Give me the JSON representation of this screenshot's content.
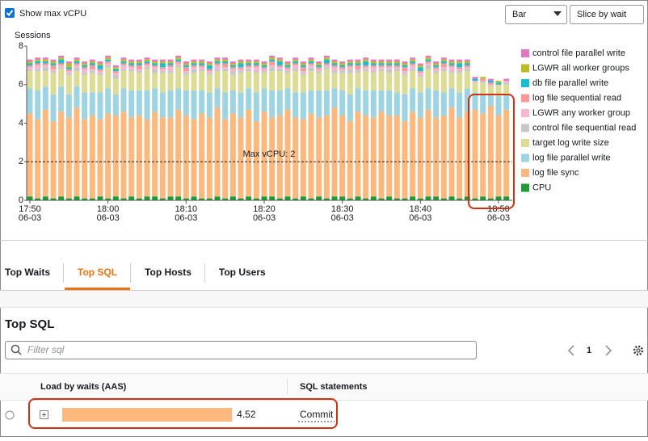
{
  "controls": {
    "show_max_vcpu": "Show max vCPU",
    "chart_type": "Bar",
    "slice": "Slice by wait"
  },
  "chart_data": {
    "type": "bar",
    "stacked": true,
    "ylabel": "Sessions",
    "ylim": [
      0,
      8
    ],
    "yticks": [
      0,
      2,
      4,
      6,
      8
    ],
    "categories": [
      "17:50",
      null,
      null,
      null,
      null,
      null,
      null,
      null,
      null,
      null,
      "18:00",
      null,
      null,
      null,
      null,
      null,
      null,
      null,
      null,
      null,
      "18:10",
      null,
      null,
      null,
      null,
      null,
      null,
      null,
      null,
      null,
      "18:20",
      null,
      null,
      null,
      null,
      null,
      null,
      null,
      null,
      null,
      "18:30",
      null,
      null,
      null,
      null,
      null,
      null,
      null,
      null,
      null,
      "18:40",
      null,
      null,
      null,
      null,
      null,
      null,
      null,
      null,
      null,
      "18:50",
      null
    ],
    "x_sublabels": [
      "06-03",
      null,
      null,
      null,
      null,
      null,
      null,
      null,
      null,
      null,
      "06-03",
      null,
      null,
      null,
      null,
      null,
      null,
      null,
      null,
      null,
      "06-03",
      null,
      null,
      null,
      null,
      null,
      null,
      null,
      null,
      null,
      "06-03",
      null,
      null,
      null,
      null,
      null,
      null,
      null,
      null,
      null,
      "06-03",
      null,
      null,
      null,
      null,
      null,
      null,
      null,
      null,
      null,
      "06-03",
      null,
      null,
      null,
      null,
      null,
      null,
      null,
      null,
      null,
      "06-03",
      null
    ],
    "reference_line": {
      "value": 2,
      "label": "Max vCPU: 2"
    },
    "series": [
      {
        "name": "CPU",
        "color": "#1e9b34",
        "values": [
          0.2,
          0.1,
          0.2,
          0.1,
          0.2,
          0.1,
          0.2,
          0.1,
          0.1,
          0.2,
          0.1,
          0.2,
          0.1,
          0.2,
          0.1,
          0.2,
          0.2,
          0.1,
          0.2,
          0.2,
          0.1,
          0.2,
          0.1,
          0.1,
          0.2,
          0.1,
          0.2,
          0.1,
          0.2,
          0.1,
          0.2,
          0.2,
          0.1,
          0.2,
          0.1,
          0.2,
          0.1,
          0.2,
          0.1,
          0.2,
          0.2,
          0.1,
          0.2,
          0.1,
          0.2,
          0.1,
          0.2,
          0.1,
          0.1,
          0.2,
          0.1,
          0.2,
          0.2,
          0.1,
          0.2,
          0.1,
          0.2,
          0.1,
          0.2,
          0.1,
          0.2,
          0.2
        ]
      },
      {
        "name": "log file sync",
        "color": "#fdb97d",
        "values": [
          4.3,
          4.1,
          4.5,
          4.0,
          4.4,
          4.2,
          4.6,
          4.1,
          4.3,
          4.0,
          4.4,
          4.2,
          4.5,
          4.1,
          4.3,
          4.0,
          4.4,
          4.2,
          4.1,
          4.5,
          4.3,
          4.0,
          4.4,
          4.2,
          4.6,
          4.1,
          4.3,
          4.2,
          4.5,
          4.0,
          4.4,
          4.1,
          4.3,
          4.5,
          4.2,
          4.0,
          4.4,
          4.1,
          4.3,
          4.6,
          4.2,
          4.0,
          4.4,
          4.3,
          4.1,
          4.5,
          4.2,
          4.3,
          4.0,
          4.4,
          4.2,
          4.5,
          4.1,
          4.3,
          4.6,
          4.2,
          4.4,
          4.6,
          4.3,
          4.8,
          4.2,
          4.5
        ]
      },
      {
        "name": "log file parallel write",
        "color": "#9ed4e2",
        "values": [
          1.3,
          1.5,
          1.2,
          1.4,
          1.3,
          1.2,
          1.1,
          1.4,
          1.2,
          1.4,
          1.3,
          1.1,
          1.2,
          1.4,
          1.3,
          1.5,
          1.2,
          1.3,
          1.4,
          1.1,
          1.3,
          1.5,
          1.2,
          1.3,
          1.0,
          1.4,
          1.2,
          1.3,
          1.1,
          1.5,
          1.2,
          1.4,
          1.3,
          1.1,
          1.3,
          1.4,
          1.2,
          1.4,
          1.3,
          1.0,
          1.3,
          1.4,
          1.2,
          1.3,
          1.4,
          1.1,
          1.3,
          1.2,
          1.4,
          1.2,
          1.3,
          1.1,
          1.4,
          1.2,
          1.0,
          1.3,
          1.2,
          0.9,
          1.0,
          0.6,
          1.0,
          0.8
        ]
      },
      {
        "name": "target log write size",
        "color": "#dcdc96",
        "values": [
          0.9,
          1.0,
          0.8,
          1.1,
          0.9,
          1.0,
          0.8,
          0.9,
          1.0,
          0.9,
          1.1,
          0.8,
          0.9,
          1.0,
          0.9,
          1.1,
          0.8,
          1.0,
          0.9,
          1.1,
          0.8,
          0.9,
          1.0,
          0.9,
          0.9,
          1.1,
          0.8,
          1.0,
          0.9,
          1.0,
          0.8,
          1.0,
          1.0,
          0.8,
          1.1,
          0.9,
          1.0,
          0.9,
          1.1,
          0.8,
          0.9,
          1.1,
          0.8,
          1.0,
          0.9,
          1.0,
          0.9,
          1.1,
          1.0,
          0.9,
          0.8,
          1.0,
          0.9,
          1.1,
          0.8,
          1.0,
          0.9,
          0.5,
          0.6,
          0.4,
          0.6,
          0.5
        ]
      },
      {
        "name": "control file sequential read",
        "color": "#c7c7c7",
        "values": [
          0.1,
          0.1,
          0.2,
          0.1,
          0.1,
          0.1,
          0.2,
          0.1,
          0.1,
          0.1,
          0.1,
          0.2,
          0.1,
          0.1,
          0.1,
          0.1,
          0.2,
          0.1,
          0.1,
          0.1,
          0.1,
          0.2,
          0.1,
          0.1,
          0.1,
          0.1,
          0.2,
          0.1,
          0.1,
          0.1,
          0.1,
          0.2,
          0.1,
          0.1,
          0.1,
          0.1,
          0.2,
          0.1,
          0.1,
          0.1,
          0.1,
          0.2,
          0.1,
          0.1,
          0.1,
          0.1,
          0.2,
          0.1,
          0.1,
          0.1,
          0.1,
          0.2,
          0.1,
          0.1,
          0.1,
          0.1,
          0.1,
          0,
          0.1,
          0,
          0,
          0.1
        ]
      },
      {
        "name": "LGWR any worker group",
        "color": "#f7b6d2",
        "values": [
          0.1,
          0.2,
          0.1,
          0.1,
          0.1,
          0.1,
          0.1,
          0.2,
          0.1,
          0.1,
          0.1,
          0.1,
          0.2,
          0.1,
          0.1,
          0.1,
          0.1,
          0.1,
          0.2,
          0.1,
          0.1,
          0.1,
          0.1,
          0.1,
          0.2,
          0.1,
          0.1,
          0.1,
          0.1,
          0.2,
          0.1,
          0.1,
          0.1,
          0.1,
          0.2,
          0.1,
          0.1,
          0.1,
          0.1,
          0.2,
          0.1,
          0.1,
          0.1,
          0.1,
          0.2,
          0.1,
          0.1,
          0.1,
          0.1,
          0.2,
          0.1,
          0.1,
          0.1,
          0.1,
          0.2,
          0.1,
          0.1,
          0.1,
          0,
          0.1,
          0,
          0.1
        ]
      },
      {
        "name": "log file sequential read",
        "color": "#ff9896",
        "values": [
          0.1,
          0.1,
          0.1,
          0.2,
          0.1,
          0.1,
          0.1,
          0.1,
          0.2,
          0.1,
          0.1,
          0.1,
          0.1,
          0.1,
          0.2,
          0.1,
          0.1,
          0.1,
          0.1,
          0.1,
          0.2,
          0.1,
          0.1,
          0.1,
          0.1,
          0.2,
          0.1,
          0.1,
          0.1,
          0.1,
          0.1,
          0.2,
          0.1,
          0.1,
          0.1,
          0.2,
          0.1,
          0.1,
          0.1,
          0.1,
          0.1,
          0.1,
          0.2,
          0.1,
          0.1,
          0.1,
          0.1,
          0.1,
          0.2,
          0.1,
          0.1,
          0.1,
          0.1,
          0.2,
          0.1,
          0.1,
          0.1,
          0,
          0.1,
          0.1,
          0,
          0
        ]
      },
      {
        "name": "db file parallel write",
        "color": "#17becf",
        "values": [
          0.1,
          0.1,
          0.1,
          0.1,
          0.2,
          0.1,
          0.1,
          0.1,
          0.1,
          0.2,
          0.1,
          0.1,
          0.1,
          0.1,
          0.1,
          0.1,
          0.1,
          0.2,
          0.1,
          0.1,
          0.1,
          0.1,
          0.1,
          0.2,
          0.1,
          0.1,
          0.1,
          0.2,
          0.1,
          0.1,
          0.1,
          0.1,
          0.2,
          0.1,
          0.1,
          0.1,
          0.1,
          0.1,
          0.2,
          0.1,
          0.1,
          0.1,
          0.1,
          0.2,
          0.1,
          0.1,
          0.1,
          0.1,
          0.1,
          0.1,
          0.2,
          0.1,
          0.1,
          0.1,
          0.1,
          0.2,
          0.1,
          0.1,
          0,
          0.1,
          0.1,
          0
        ]
      },
      {
        "name": "LGWR all worker groups",
        "color": "#bcbd22",
        "values": [
          0.1,
          0.1,
          0.1,
          0.1,
          0.1,
          0.2,
          0.1,
          0.1,
          0.1,
          0.1,
          0.1,
          0.1,
          0.1,
          0.1,
          0.1,
          0.1,
          0.1,
          0.1,
          0.1,
          0.1,
          0.1,
          0.1,
          0.1,
          0.1,
          0.1,
          0.1,
          0.1,
          0.1,
          0.1,
          0.1,
          0.1,
          0.1,
          0.1,
          0.1,
          0.1,
          0.1,
          0.1,
          0.1,
          0.1,
          0.1,
          0.1,
          0.1,
          0.1,
          0.1,
          0.1,
          0.1,
          0.1,
          0.1,
          0.1,
          0.1,
          0.1,
          0.1,
          0.1,
          0.1,
          0.1,
          0.1,
          0.1,
          0,
          0.1,
          0,
          0.1,
          0
        ]
      },
      {
        "name": "control file parallel write",
        "color": "#e377c2",
        "values": [
          0.1,
          0.1,
          0.1,
          0.1,
          0.1,
          0.1,
          0.1,
          0.1,
          0.1,
          0.1,
          0.1,
          0.1,
          0.1,
          0.1,
          0.1,
          0.1,
          0.1,
          0.1,
          0.1,
          0.1,
          0.1,
          0.1,
          0.1,
          0.1,
          0.1,
          0.1,
          0.1,
          0.1,
          0.1,
          0.1,
          0.1,
          0.1,
          0.1,
          0.1,
          0.1,
          0.1,
          0.1,
          0.1,
          0.1,
          0.1,
          0.1,
          0.1,
          0.1,
          0.1,
          0.1,
          0.1,
          0.1,
          0.1,
          0.1,
          0.1,
          0.1,
          0.1,
          0.1,
          0.1,
          0.1,
          0.1,
          0.1,
          0.1,
          0,
          0.1,
          0,
          0.1
        ]
      }
    ]
  },
  "tabs": [
    "Top Waits",
    "Top SQL",
    "Top Hosts",
    "Top Users"
  ],
  "top_sql": {
    "title": "Top SQL",
    "filter_placeholder": "Filter sql",
    "page": 1,
    "columns": [
      "Load by waits (AAS)",
      "SQL statements"
    ],
    "rows": [
      {
        "load": 4.52,
        "statement": "Commit",
        "color": "#fdb97d"
      }
    ]
  }
}
